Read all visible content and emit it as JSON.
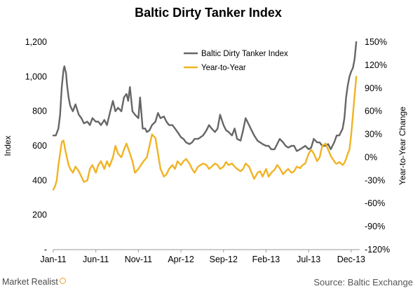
{
  "chart_data": {
    "type": "line",
    "title": "Baltic Dirty Tanker Index",
    "ylabel": "Index",
    "y2label": "Year-to-Year Change",
    "x_ticks": [
      "Jan-11",
      "Jun-11",
      "Nov-11",
      "Apr-12",
      "Sep-12",
      "Feb-13",
      "Jul-13",
      "Dec-13"
    ],
    "y_ticks": [
      "-",
      "200",
      "400",
      "600",
      "800",
      "1,000",
      "1,200"
    ],
    "y2_ticks": [
      "-120%",
      "-90%",
      "-60%",
      "-30%",
      "0%",
      "30%",
      "60%",
      "90%",
      "120%",
      "150%"
    ],
    "ylim": [
      0,
      1200
    ],
    "y2lim": [
      -120,
      150
    ],
    "xlim": [
      0,
      36
    ],
    "grid": false,
    "legend_position": "top-center",
    "series": [
      {
        "name": "Baltic Dirty Tanker Index",
        "axis": "left",
        "color": "#666666",
        "x": [
          0,
          0.3,
          0.6,
          0.8,
          1.0,
          1.2,
          1.3,
          1.5,
          1.6,
          1.8,
          2.0,
          2.3,
          2.6,
          3.0,
          3.3,
          3.6,
          4.0,
          4.3,
          4.6,
          5.0,
          5.3,
          5.6,
          6.0,
          6.3,
          6.6,
          7.0,
          7.3,
          7.6,
          8.0,
          8.3,
          8.6,
          8.8,
          9.0,
          9.3,
          9.6,
          10.0,
          10.2,
          10.5,
          10.8,
          11.0,
          11.3,
          11.6,
          12.0,
          12.3,
          12.6,
          13.0,
          13.3,
          13.6,
          14.0,
          14.3,
          14.6,
          15.0,
          15.3,
          15.6,
          16.0,
          16.3,
          16.6,
          17.0,
          17.3,
          17.6,
          18.0,
          18.3,
          18.6,
          19.0,
          19.3,
          19.6,
          20.0,
          20.3,
          20.6,
          21.0,
          21.3,
          21.6,
          22.0,
          22.3,
          22.6,
          23.0,
          23.3,
          23.6,
          24.0,
          24.3,
          24.6,
          25.0,
          25.3,
          25.6,
          26.0,
          26.3,
          26.6,
          27.0,
          27.3,
          27.6,
          28.0,
          28.3,
          28.6,
          29.0,
          29.3,
          29.6,
          30.0,
          30.3,
          30.6,
          31.0,
          31.3,
          31.6,
          32.0,
          32.3,
          32.6,
          33.0,
          33.3,
          33.6,
          34.0,
          34.2,
          34.4,
          34.6,
          34.8,
          35.0,
          35.2,
          35.4,
          35.6
        ],
        "values": [
          660,
          660,
          700,
          780,
          940,
          1040,
          1060,
          1020,
          960,
          880,
          830,
          800,
          840,
          780,
          760,
          730,
          740,
          720,
          760,
          740,
          740,
          720,
          750,
          720,
          780,
          860,
          800,
          820,
          800,
          880,
          900,
          860,
          940,
          800,
          780,
          760,
          880,
          700,
          700,
          680,
          690,
          720,
          740,
          790,
          760,
          770,
          740,
          720,
          720,
          700,
          680,
          650,
          640,
          620,
          610,
          620,
          640,
          640,
          650,
          660,
          690,
          720,
          700,
          680,
          700,
          780,
          720,
          690,
          680,
          660,
          700,
          640,
          630,
          690,
          760,
          720,
          690,
          660,
          630,
          620,
          610,
          600,
          600,
          580,
          580,
          610,
          640,
          620,
          600,
          590,
          600,
          600,
          570,
          580,
          590,
          600,
          580,
          590,
          640,
          620,
          620,
          600,
          600,
          610,
          580,
          620,
          660,
          660,
          700,
          760,
          880,
          950,
          1000,
          1030,
          1050,
          1100,
          1200
        ]
      },
      {
        "name": "Year-to-Year",
        "axis": "right",
        "color": "#f0b323",
        "x": [
          0,
          0.2,
          0.4,
          0.6,
          0.8,
          1.0,
          1.2,
          1.4,
          1.6,
          1.8,
          2.0,
          2.3,
          2.6,
          3.0,
          3.3,
          3.6,
          4.0,
          4.3,
          4.6,
          5.0,
          5.3,
          5.6,
          6.0,
          6.3,
          6.6,
          7.0,
          7.3,
          7.6,
          8.0,
          8.3,
          8.6,
          9.0,
          9.3,
          9.6,
          10.0,
          10.3,
          10.6,
          11.0,
          11.3,
          11.6,
          12.0,
          12.3,
          12.6,
          13.0,
          13.3,
          13.6,
          14.0,
          14.3,
          14.6,
          15.0,
          15.3,
          15.6,
          16.0,
          16.3,
          16.6,
          17.0,
          17.3,
          17.6,
          18.0,
          18.3,
          18.6,
          19.0,
          19.3,
          19.6,
          20.0,
          20.3,
          20.6,
          21.0,
          21.3,
          21.6,
          22.0,
          22.3,
          22.6,
          23.0,
          23.3,
          23.6,
          24.0,
          24.3,
          24.6,
          25.0,
          25.3,
          25.6,
          26.0,
          26.3,
          26.6,
          27.0,
          27.3,
          27.6,
          28.0,
          28.3,
          28.6,
          29.0,
          29.3,
          29.6,
          30.0,
          30.3,
          30.6,
          31.0,
          31.3,
          31.6,
          32.0,
          32.3,
          32.6,
          33.0,
          33.2,
          33.4,
          33.6,
          33.8,
          34.0,
          34.2,
          34.4,
          34.6,
          34.8,
          35.0,
          35.2,
          35.4,
          35.6
        ],
        "values": [
          -42,
          -38,
          -30,
          -10,
          5,
          20,
          22,
          10,
          0,
          -10,
          -15,
          -20,
          -12,
          -18,
          -25,
          -32,
          -30,
          -15,
          -10,
          -20,
          -10,
          -5,
          -15,
          -5,
          -12,
          0,
          15,
          5,
          0,
          10,
          18,
          5,
          -5,
          -20,
          -15,
          -10,
          -5,
          0,
          15,
          30,
          25,
          5,
          -15,
          -25,
          -22,
          -15,
          -10,
          -15,
          -5,
          -10,
          -5,
          -2,
          -8,
          -15,
          -20,
          -12,
          -10,
          -8,
          -10,
          -15,
          -12,
          -8,
          -10,
          -15,
          -12,
          -6,
          -10,
          -8,
          -12,
          -15,
          -18,
          -15,
          -8,
          -12,
          -20,
          -28,
          -20,
          -18,
          -25,
          -15,
          -25,
          -20,
          -16,
          -10,
          -14,
          -22,
          -18,
          -15,
          -20,
          -18,
          -12,
          -14,
          -10,
          -8,
          5,
          10,
          5,
          -5,
          0,
          15,
          18,
          10,
          2,
          -5,
          -8,
          -8,
          -6,
          -8,
          -10,
          -7,
          -2,
          5,
          10,
          30,
          55,
          80,
          105
        ]
      }
    ]
  },
  "footer": {
    "brand": "Market Realist",
    "source": "Source: Baltic Exchange"
  }
}
